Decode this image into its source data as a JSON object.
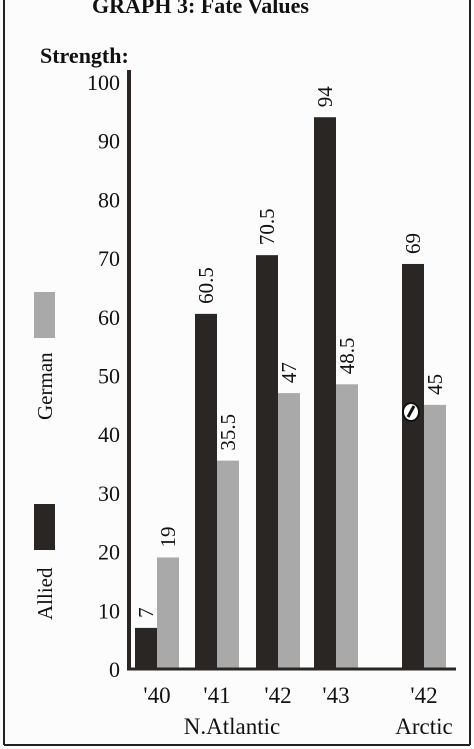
{
  "header": {
    "title": "GRAPH 3: Fate Values"
  },
  "chart_data": {
    "type": "bar",
    "title": "GRAPH 3: Fate Values",
    "ylabel": "Strength:",
    "xlabel": "",
    "ylim": [
      0,
      100
    ],
    "y_ticks": [
      "0",
      "10",
      "20",
      "30",
      "40",
      "50",
      "60",
      "70",
      "80",
      "90",
      "100"
    ],
    "categories": [
      "'40",
      "'41",
      "'42",
      "'43",
      "'42"
    ],
    "category_groups": [
      "N.Atlantic",
      "Arctic"
    ],
    "series": [
      {
        "name": "Allied",
        "values": [
          7,
          60.5,
          70.5,
          94,
          69
        ]
      },
      {
        "name": "German",
        "values": [
          19,
          35.5,
          47,
          48.5,
          45
        ]
      }
    ],
    "value_labels": {
      "Allied": [
        "7",
        "60.5",
        "70.5",
        "94",
        "69"
      ],
      "German": [
        "19",
        "35.5",
        "47",
        "48.5",
        "45"
      ]
    },
    "legend_position": "left",
    "grid": false,
    "colors": {
      "Allied": "#2a2623",
      "German": "#a9a9a9",
      "axis": "#2a2623"
    }
  }
}
